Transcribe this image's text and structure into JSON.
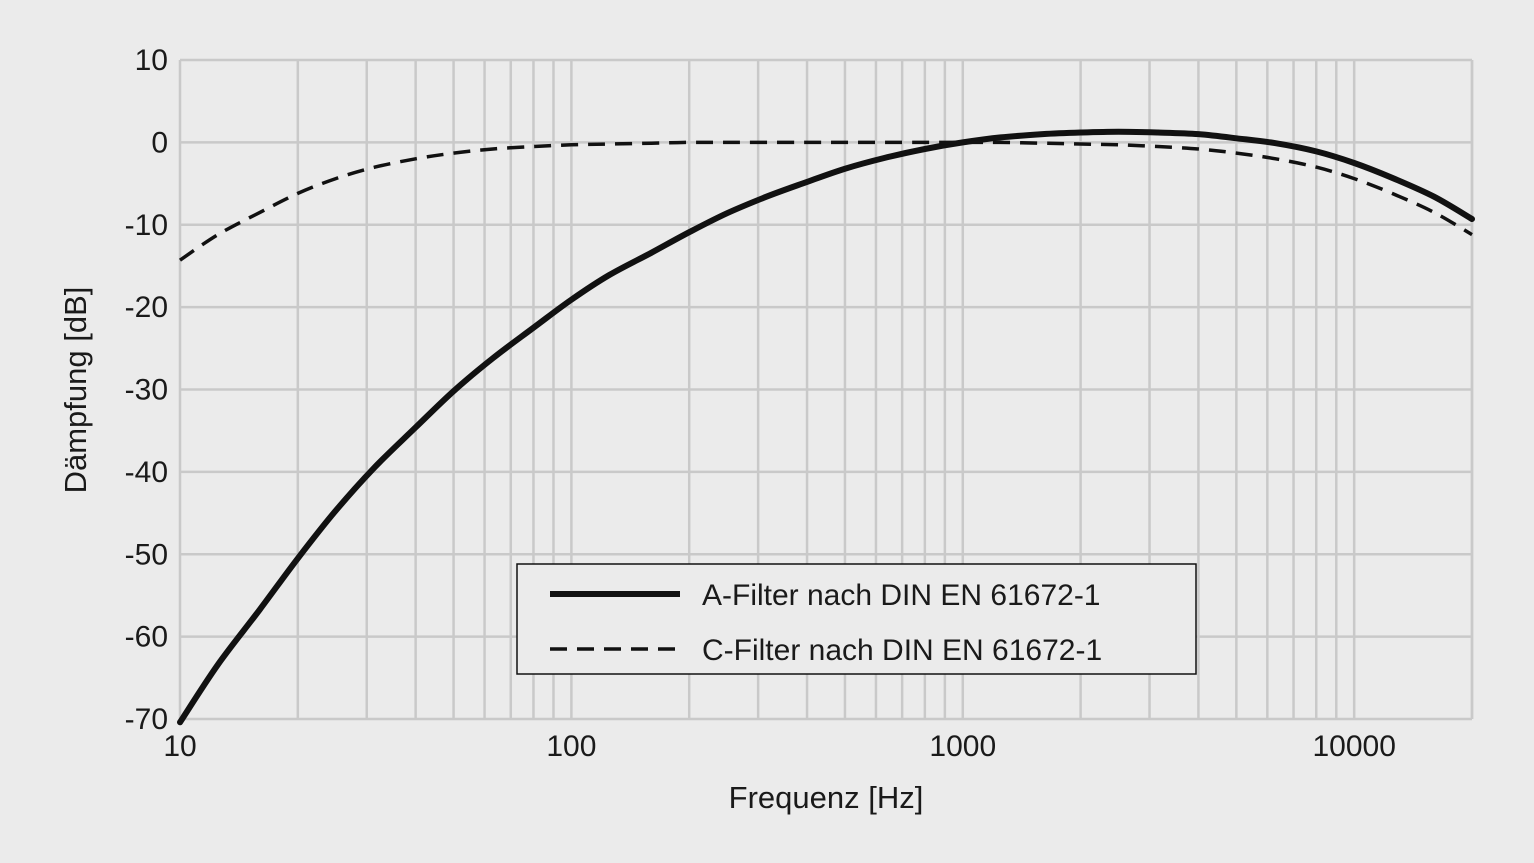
{
  "chart_data": {
    "type": "line",
    "title": "",
    "xlabel": "Frequenz [Hz]",
    "ylabel": "Dämpfung [dB]",
    "x_scale": "log",
    "xlim": [
      10,
      20000
    ],
    "ylim": [
      -70,
      10
    ],
    "grid": true,
    "x_ticks": [
      10,
      100,
      1000,
      10000
    ],
    "x_tick_labels": [
      "10",
      "100",
      "1000",
      "10000"
    ],
    "y_ticks": [
      10,
      0,
      -10,
      -20,
      -30,
      -40,
      -50,
      -60,
      -70
    ],
    "y_tick_labels": [
      "10",
      "0",
      "-10",
      "-20",
      "-30",
      "-40",
      "-50",
      "-60",
      "-70"
    ],
    "legend": {
      "position": "bottom-center",
      "entries": [
        "A-Filter nach DIN EN 61672-1",
        "C-Filter nach DIN EN 61672-1"
      ]
    },
    "series": [
      {
        "name": "A-Filter nach DIN EN 61672-1",
        "style": "solid",
        "color": "#111111",
        "x": [
          10,
          12.5,
          16,
          20,
          25,
          31.5,
          40,
          50,
          63,
          80,
          100,
          125,
          160,
          200,
          250,
          315,
          400,
          500,
          630,
          800,
          1000,
          1250,
          1600,
          2000,
          2500,
          3150,
          4000,
          5000,
          6300,
          8000,
          10000,
          12500,
          16000,
          20000
        ],
        "y": [
          -70.4,
          -63.4,
          -56.7,
          -50.5,
          -44.7,
          -39.4,
          -34.6,
          -30.2,
          -26.2,
          -22.5,
          -19.1,
          -16.1,
          -13.4,
          -10.9,
          -8.6,
          -6.6,
          -4.8,
          -3.2,
          -1.9,
          -0.8,
          0.0,
          0.6,
          1.0,
          1.2,
          1.3,
          1.2,
          1.0,
          0.5,
          -0.1,
          -1.1,
          -2.5,
          -4.3,
          -6.6,
          -9.3
        ]
      },
      {
        "name": "C-Filter nach DIN EN 61672-1",
        "style": "dashed",
        "color": "#111111",
        "x": [
          10,
          12.5,
          16,
          20,
          25,
          31.5,
          40,
          50,
          63,
          80,
          100,
          125,
          160,
          200,
          250,
          315,
          400,
          500,
          630,
          800,
          1000,
          1250,
          1600,
          2000,
          2500,
          3150,
          4000,
          5000,
          6300,
          8000,
          10000,
          12500,
          16000,
          20000
        ],
        "y": [
          -14.3,
          -11.2,
          -8.5,
          -6.2,
          -4.4,
          -3.0,
          -2.0,
          -1.3,
          -0.8,
          -0.5,
          -0.3,
          -0.2,
          -0.1,
          0.0,
          0.0,
          0.0,
          0.0,
          0.0,
          0.0,
          0.0,
          0.0,
          0.0,
          -0.1,
          -0.2,
          -0.3,
          -0.5,
          -0.8,
          -1.3,
          -2.0,
          -3.0,
          -4.4,
          -6.2,
          -8.5,
          -11.2
        ]
      }
    ]
  }
}
